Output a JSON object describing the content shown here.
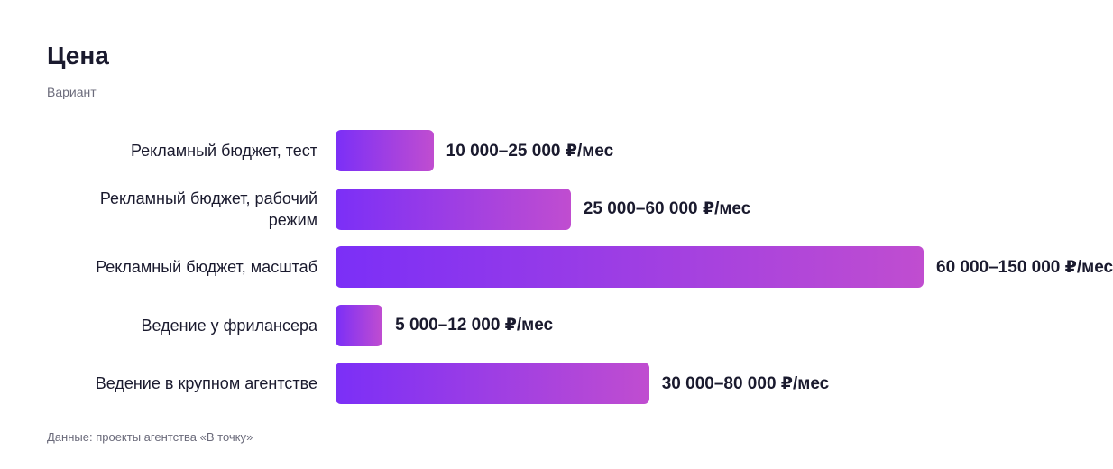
{
  "chart_data": {
    "type": "bar",
    "title": "Цена",
    "subtitle": "Вариант",
    "categories": [
      "Рекламный бюджет, тест",
      "Рекламный бюджет, рабочий режим",
      "Рекламный бюджет, масштаб",
      "Ведение у фрилансера",
      "Ведение в крупном агентстве"
    ],
    "low": [
      10000,
      25000,
      60000,
      5000,
      30000
    ],
    "high": [
      25000,
      60000,
      150000,
      12000,
      80000
    ],
    "value_labels": [
      "10 000–25 000 ₽/мес",
      "25 000–60 000 ₽/мес",
      "60 000–150 000 ₽/мес",
      "5 000–12 000 ₽/мес",
      "30 000–80 000 ₽/мес"
    ],
    "color": [
      "#7b2ff7",
      "#c04dd0"
    ],
    "source": "Данные: проекты агентства «В точку»"
  }
}
